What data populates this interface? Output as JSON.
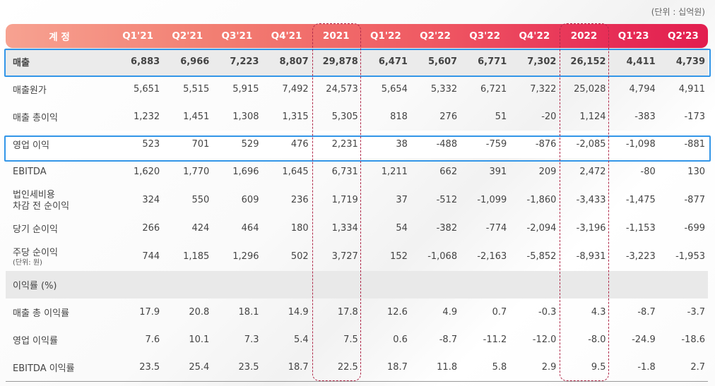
{
  "unit_note": "(단위 : 십억원)",
  "header": {
    "label": "계 정",
    "periods": [
      "Q1'21",
      "Q2'21",
      "Q3'21",
      "Q4'21",
      "2021",
      "Q1'22",
      "Q2'22",
      "Q3'22",
      "Q4'22",
      "2022",
      "Q1'23",
      "Q2'23"
    ]
  },
  "rows": {
    "revenue": {
      "label": "매출",
      "values": [
        "6,883",
        "6,966",
        "7,223",
        "8,807",
        "29,878",
        "6,471",
        "5,607",
        "6,771",
        "7,302",
        "26,152",
        "4,411",
        "4,739"
      ]
    },
    "cogs": {
      "label": "매출원가",
      "values": [
        "5,651",
        "5,515",
        "5,915",
        "7,492",
        "24,573",
        "5,654",
        "5,332",
        "6,721",
        "7,322",
        "25,028",
        "4,794",
        "4,911"
      ]
    },
    "gross_profit": {
      "label": "매출 총이익",
      "values": [
        "1,232",
        "1,451",
        "1,308",
        "1,315",
        "5,305",
        "818",
        "276",
        "51",
        "-20",
        "1,124",
        "-383",
        "-173"
      ]
    },
    "operating_income": {
      "label": "영업 이익",
      "values": [
        "523",
        "701",
        "529",
        "476",
        "2,231",
        "38",
        "-488",
        "-759",
        "-876",
        "-2,085",
        "-1,098",
        "-881"
      ]
    },
    "ebitda": {
      "label": "EBITDA",
      "values": [
        "1,620",
        "1,770",
        "1,696",
        "1,645",
        "6,731",
        "1,211",
        "662",
        "391",
        "209",
        "2,472",
        "-80",
        "130"
      ]
    },
    "pretax_income": {
      "label_line1": "법인세비용",
      "label_line2": "차감 전 순이익",
      "values": [
        "324",
        "550",
        "609",
        "236",
        "1,719",
        "37",
        "-512",
        "-1,099",
        "-1,860",
        "-3,433",
        "-1,475",
        "-877"
      ]
    },
    "net_income": {
      "label": "당기 순이익",
      "values": [
        "266",
        "424",
        "464",
        "180",
        "1,334",
        "54",
        "-382",
        "-774",
        "-2,094",
        "-3,196",
        "-1,153",
        "-699"
      ]
    },
    "eps": {
      "label": "주당 순이익",
      "sublabel": "(단위: 원)",
      "values": [
        "744",
        "1,185",
        "1,296",
        "502",
        "3,727",
        "152",
        "-1,068",
        "-2,163",
        "-5,852",
        "-8,931",
        "-3,223",
        "-1,953"
      ]
    },
    "margin_section": {
      "label": "이익률 (%)"
    },
    "gross_margin": {
      "label": "매출 총 이익률",
      "values": [
        "17.9",
        "20.8",
        "18.1",
        "14.9",
        "17.8",
        "12.6",
        "4.9",
        "0.7",
        "-0.3",
        "4.3",
        "-8.7",
        "-3.7"
      ]
    },
    "operating_margin": {
      "label": "영업 이익률",
      "values": [
        "7.6",
        "10.1",
        "7.3",
        "5.4",
        "7.5",
        "0.6",
        "-8.7",
        "-11.2",
        "-12.0",
        "-8.0",
        "-24.9",
        "-18.6"
      ]
    },
    "ebitda_margin": {
      "label": "EBITDA 이익률",
      "values": [
        "23.5",
        "25.4",
        "23.5",
        "18.7",
        "22.5",
        "18.7",
        "11.8",
        "5.8",
        "2.9",
        "9.5",
        "-1.8",
        "2.7"
      ]
    }
  },
  "colors": {
    "header_gradient_start": "#f7a291",
    "header_gradient_end": "#e21e4f",
    "highlight_blue": "#3396e8",
    "annual_column_dash": "#b02a4a",
    "revenue_row_bg": "#ebebeb",
    "section_row_bg": "#e9e9e9"
  }
}
